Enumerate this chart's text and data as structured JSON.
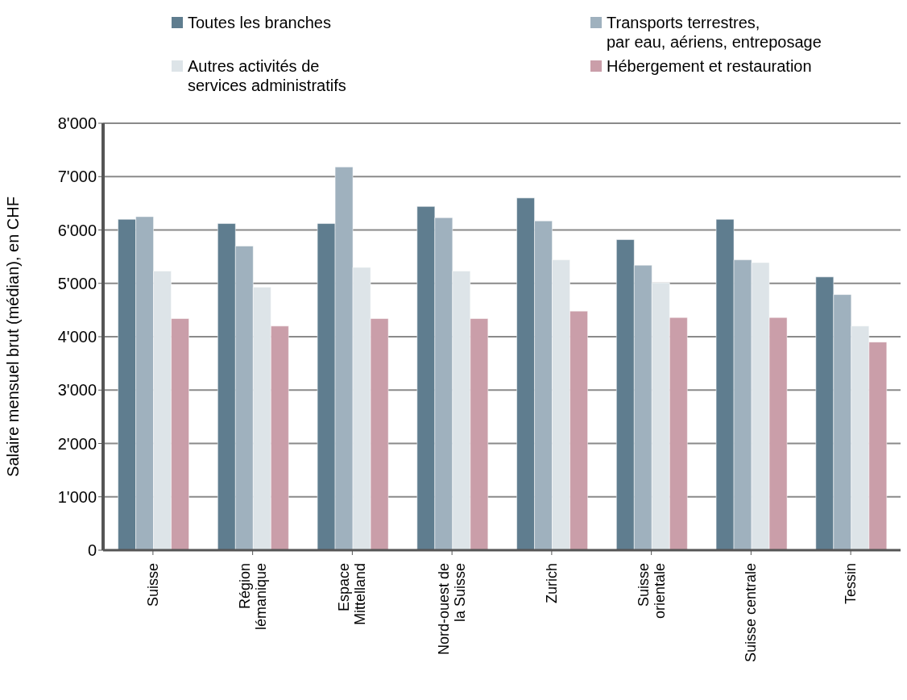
{
  "chart_data": {
    "type": "bar",
    "ylabel": "Salaire mensuel brut (médian), en CHF",
    "categories": [
      "Suisse",
      "Région\nlémanique",
      "Espace\nMittelland",
      "Nord-ouest de\nla Suisse",
      "Zurich",
      "Suisse\norientale",
      "Suisse centrale",
      "Tessin"
    ],
    "series": [
      {
        "name": "Toutes les branches",
        "color": "#5f7d8f",
        "values": [
          6200,
          6120,
          6120,
          6440,
          6600,
          5820,
          6200,
          5120
        ]
      },
      {
        "name": "Transports terrestres,\npar eau, aériens, entreposage",
        "color": "#9fb1be",
        "values": [
          6250,
          5700,
          7180,
          6230,
          6170,
          5340,
          5440,
          4790
        ]
      },
      {
        "name": "Autres activités de\nservices administratifs",
        "color": "#dde4e8",
        "values": [
          5230,
          4930,
          5300,
          5230,
          5440,
          5010,
          5390,
          4200
        ]
      },
      {
        "name": "Hébergement et restauration",
        "color": "#ca9ea9",
        "values": [
          4340,
          4200,
          4340,
          4340,
          4480,
          4360,
          4360,
          3900
        ]
      }
    ],
    "ylim": [
      0,
      8000
    ],
    "yticks": [
      {
        "value": 0,
        "label": "0"
      },
      {
        "value": 1000,
        "label": "1'000"
      },
      {
        "value": 2000,
        "label": "2'000"
      },
      {
        "value": 3000,
        "label": "3'000"
      },
      {
        "value": 4000,
        "label": "4'000"
      },
      {
        "value": 5000,
        "label": "5'000"
      },
      {
        "value": 6000,
        "label": "6'000"
      },
      {
        "value": 7000,
        "label": "7'000"
      },
      {
        "value": 8000,
        "label": "8'000"
      }
    ],
    "grid": "y",
    "legend": "top"
  }
}
